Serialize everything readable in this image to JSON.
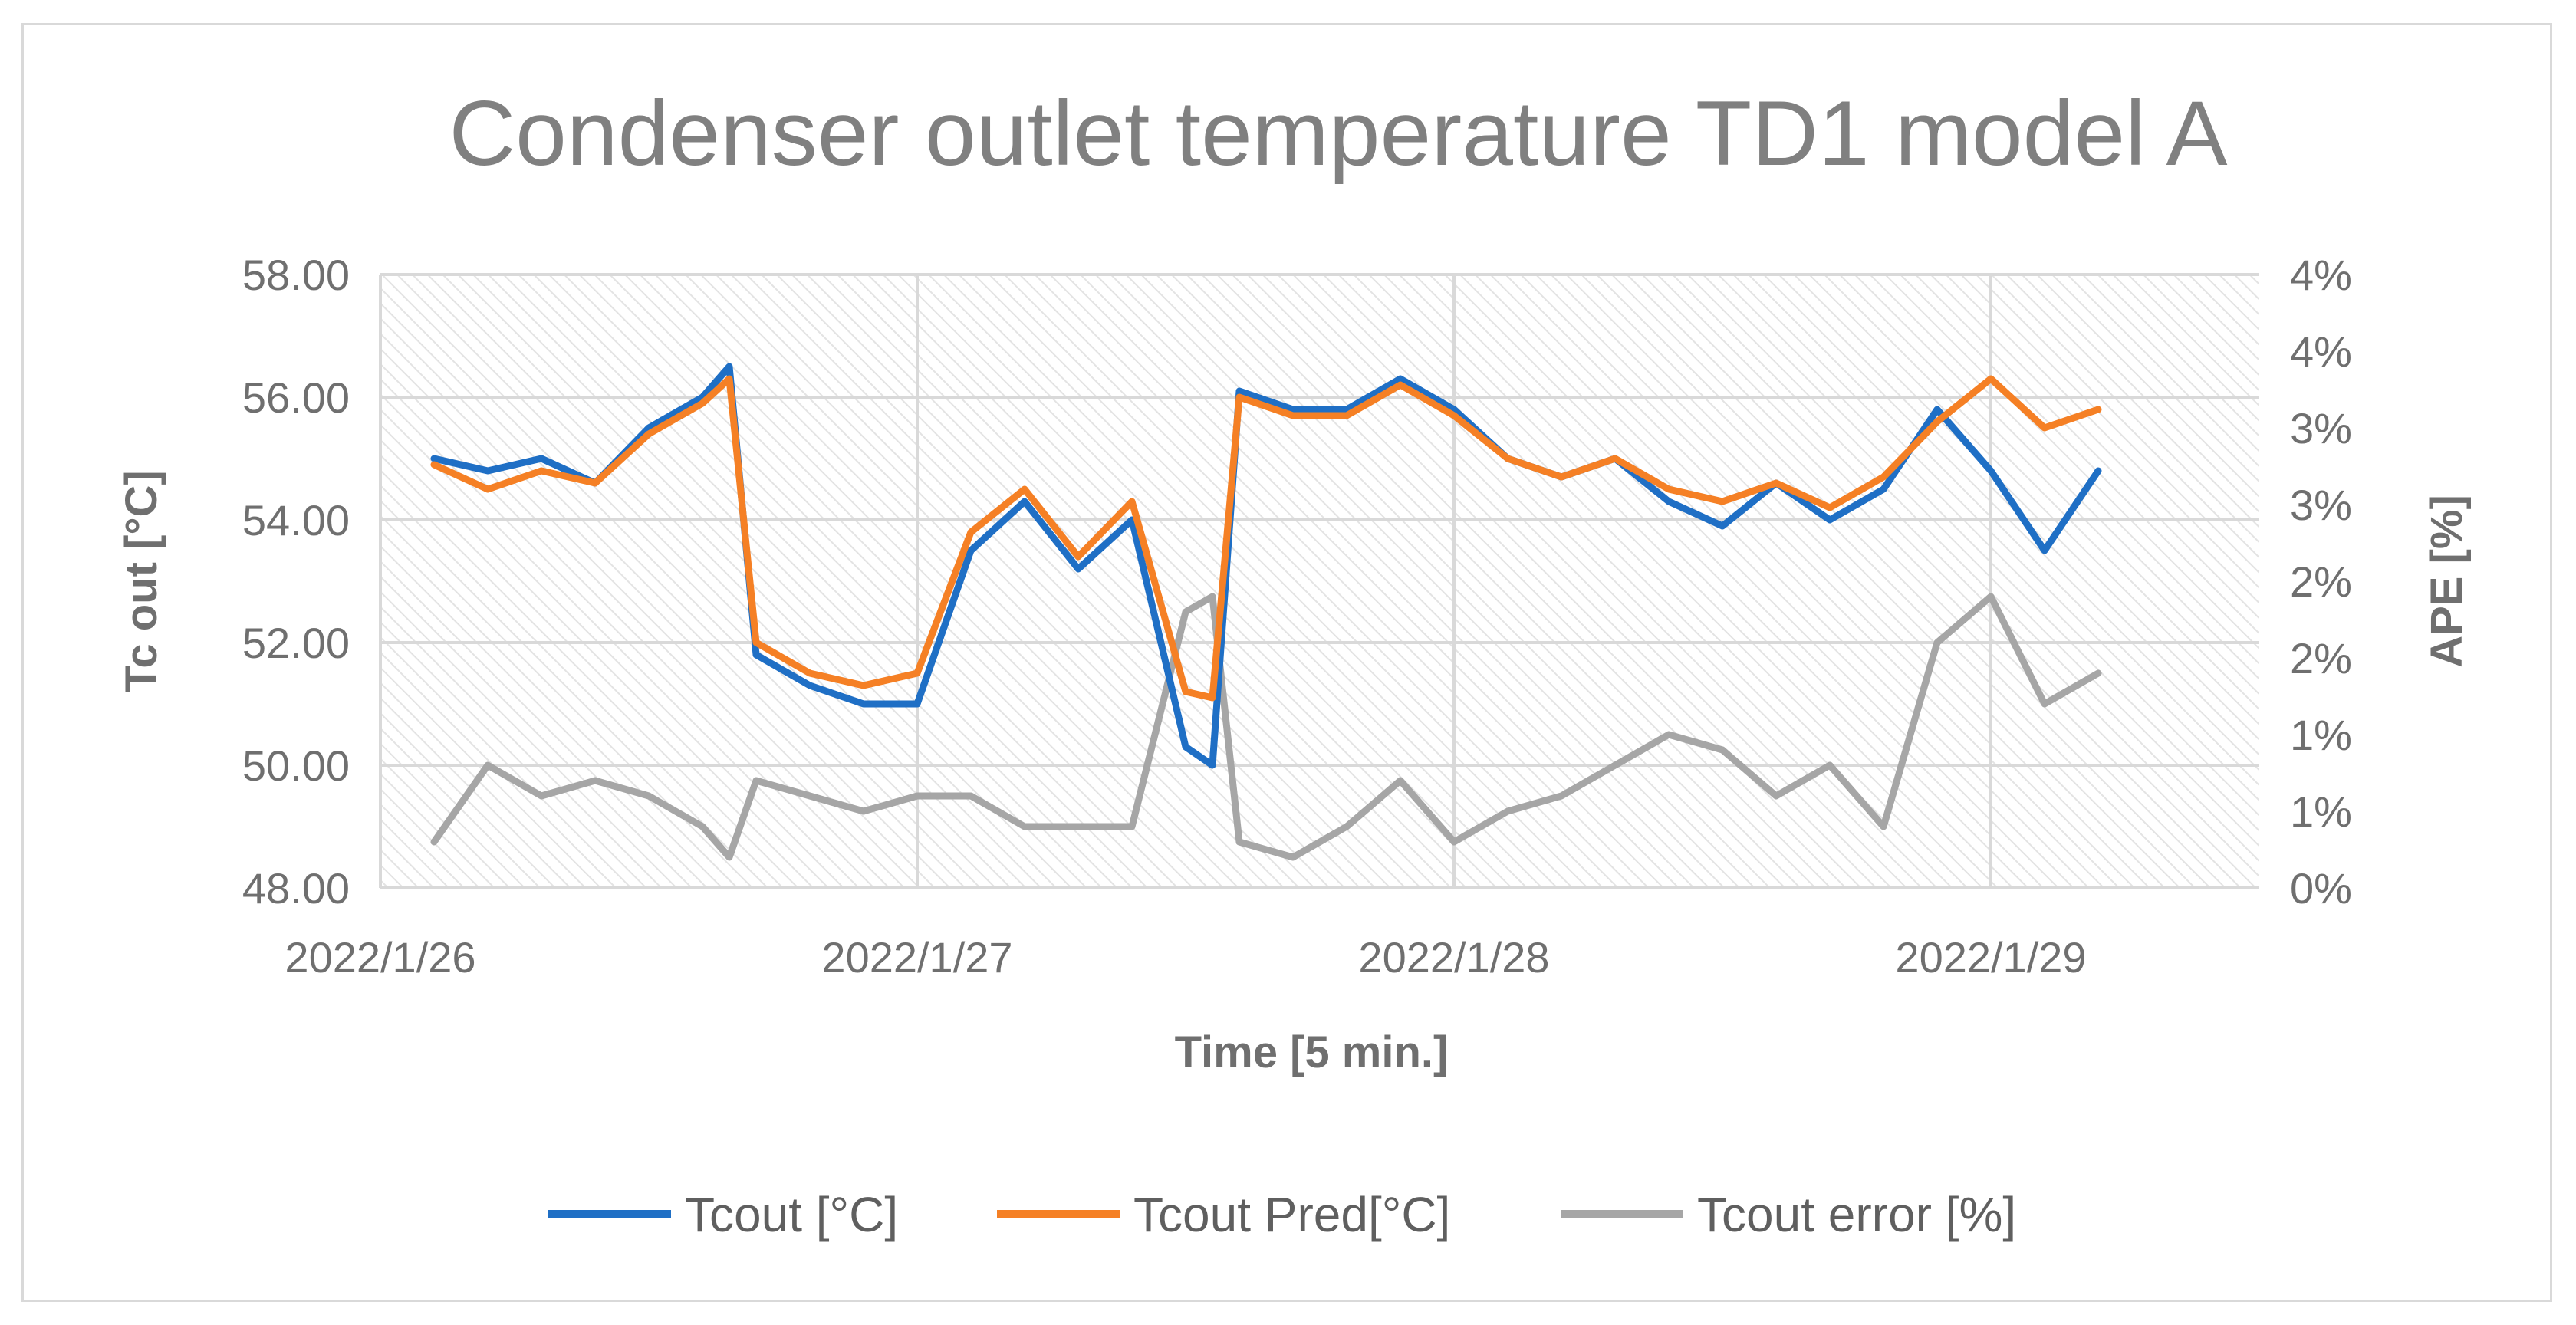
{
  "chart_data": {
    "type": "line",
    "title": "Condenser outlet temperature TD1 model A",
    "xlabel": "Time [5 min.]",
    "ylabel": "Tc out [°C]",
    "y2label": "APE [%]",
    "ylim": [
      48,
      58
    ],
    "y2lim": [
      0,
      4
    ],
    "grid": true,
    "legend_position": "bottom",
    "x_tick_labels": [
      "2022/1/26",
      "2022/1/27",
      "2022/1/28",
      "2022/1/29"
    ],
    "y_tick_labels": [
      "48.00",
      "50.00",
      "52.00",
      "54.00",
      "56.00",
      "58.00"
    ],
    "y2_tick_labels": [
      "0%",
      "1%",
      "1%",
      "2%",
      "2%",
      "3%",
      "3%",
      "4%",
      "4%"
    ],
    "x_unit": "days since 2022/1/26",
    "x": [
      0.1,
      0.2,
      0.3,
      0.4,
      0.5,
      0.6,
      0.65,
      0.7,
      0.8,
      0.9,
      1.0,
      1.1,
      1.2,
      1.3,
      1.4,
      1.5,
      1.55,
      1.6,
      1.7,
      1.8,
      1.9,
      2.0,
      2.1,
      2.2,
      2.3,
      2.4,
      2.5,
      2.6,
      2.7,
      2.8,
      2.9,
      3.0,
      3.1,
      3.2
    ],
    "series": [
      {
        "name": "Tcout [°C]",
        "color": "#1f6fc5",
        "axis": "left",
        "values": [
          55.0,
          54.8,
          55.0,
          54.6,
          55.5,
          56.0,
          56.5,
          51.8,
          51.3,
          51.0,
          51.0,
          53.5,
          54.3,
          53.2,
          54.0,
          50.3,
          50.0,
          56.1,
          55.8,
          55.8,
          56.3,
          55.8,
          55.0,
          54.7,
          55.0,
          54.3,
          53.9,
          54.6,
          54.0,
          54.5,
          55.8,
          54.8,
          53.5,
          54.8
        ]
      },
      {
        "name": "Tcout Pred[°C]",
        "color": "#f58025",
        "axis": "left",
        "values": [
          54.9,
          54.5,
          54.8,
          54.6,
          55.4,
          55.9,
          56.3,
          52.0,
          51.5,
          51.3,
          51.5,
          53.8,
          54.5,
          53.4,
          54.3,
          51.2,
          51.1,
          56.0,
          55.7,
          55.7,
          56.2,
          55.7,
          55.0,
          54.7,
          55.0,
          54.5,
          54.3,
          54.6,
          54.2,
          54.7,
          55.6,
          56.3,
          55.5,
          55.8
        ]
      },
      {
        "name": "Tcout error [%]",
        "color": "#a6a6a6",
        "axis": "right",
        "values": [
          0.3,
          0.8,
          0.6,
          0.7,
          0.6,
          0.4,
          0.2,
          0.7,
          0.6,
          0.5,
          0.6,
          0.6,
          0.4,
          0.4,
          0.4,
          1.8,
          1.9,
          0.3,
          0.2,
          0.4,
          0.7,
          0.3,
          0.5,
          0.6,
          0.8,
          1.0,
          0.9,
          0.6,
          0.8,
          0.4,
          1.6,
          1.9,
          1.2,
          1.4
        ]
      }
    ]
  }
}
